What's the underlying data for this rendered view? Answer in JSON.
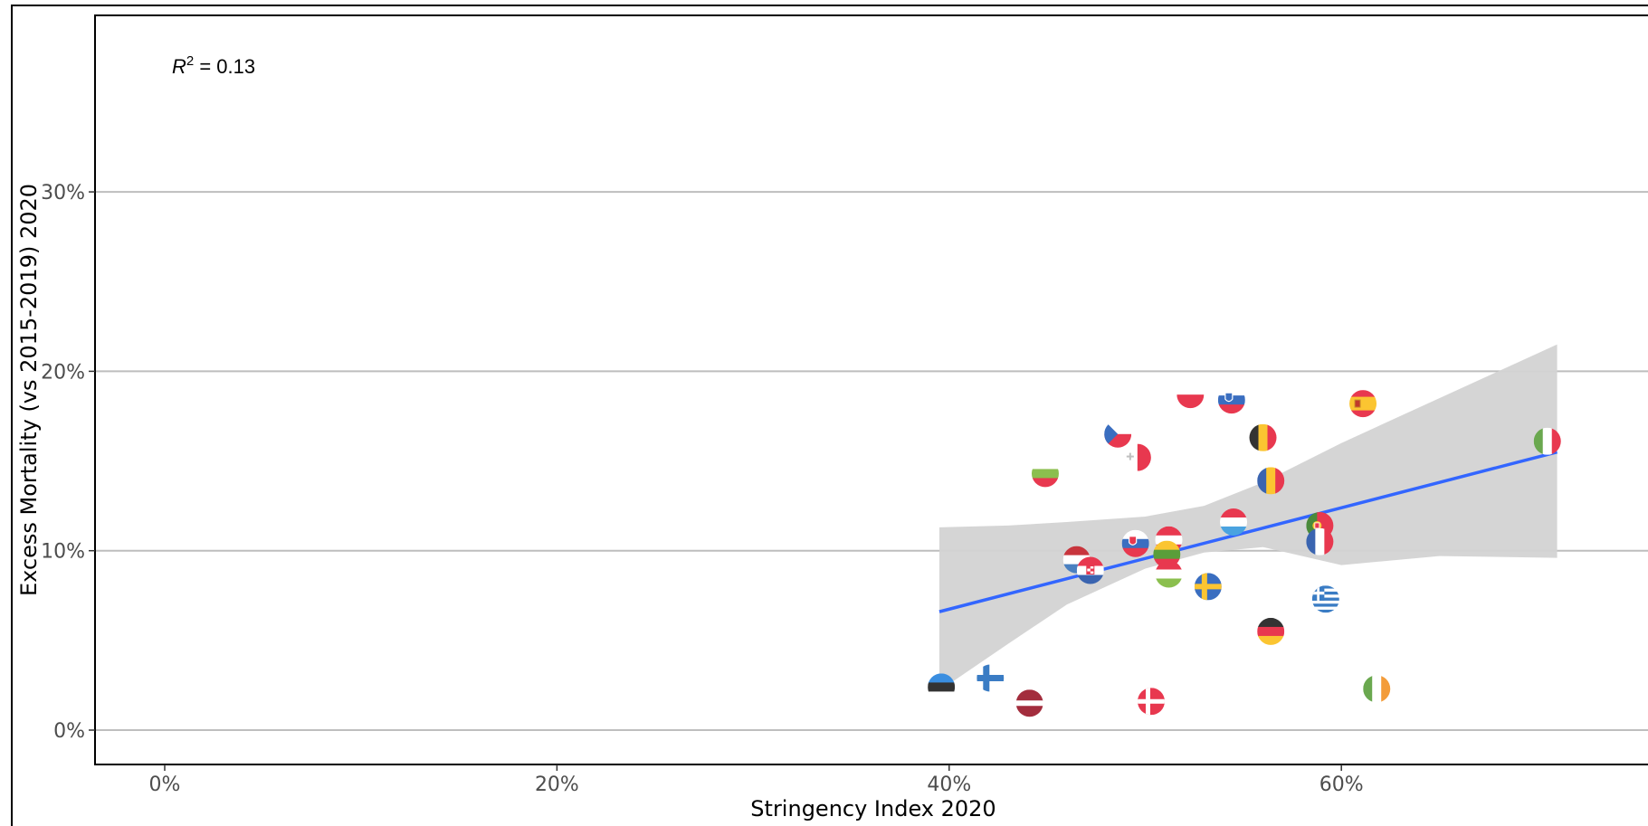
{
  "chart_data": {
    "type": "scatter",
    "xlabel": "Stringency Index 2020",
    "ylabel": "Excess Mortality (vs 2015-2019) 2020",
    "x_ticks": [
      "0%",
      "20%",
      "40%",
      "60%"
    ],
    "y_ticks": [
      "0%",
      "10%",
      "20%",
      "30%"
    ],
    "annotation": "R² = 0.13",
    "annotation_parts": {
      "r": "R",
      "sup": "2",
      "rest": " = 0.13"
    },
    "grid": "horizontal",
    "trend_color": "#3366ff",
    "ribbon_color": "#d3d3d3",
    "trend": {
      "x": [
        0.395,
        0.71
      ],
      "y": [
        0.066,
        0.155
      ]
    },
    "ribbon": [
      {
        "x": 0.395,
        "lo": 0.022,
        "hi": 0.113
      },
      {
        "x": 0.43,
        "lo": 0.048,
        "hi": 0.114
      },
      {
        "x": 0.46,
        "lo": 0.07,
        "hi": 0.116
      },
      {
        "x": 0.5,
        "lo": 0.09,
        "hi": 0.119
      },
      {
        "x": 0.53,
        "lo": 0.099,
        "hi": 0.125
      },
      {
        "x": 0.56,
        "lo": 0.102,
        "hi": 0.138
      },
      {
        "x": 0.6,
        "lo": 0.092,
        "hi": 0.16
      },
      {
        "x": 0.65,
        "lo": 0.097,
        "hi": 0.185
      },
      {
        "x": 0.71,
        "lo": 0.096,
        "hi": 0.215
      }
    ],
    "points": [
      {
        "flag": "estonia",
        "x": 0.396,
        "y": 0.024
      },
      {
        "flag": "finland",
        "x": 0.421,
        "y": 0.029
      },
      {
        "flag": "latvia",
        "x": 0.441,
        "y": 0.015
      },
      {
        "flag": "bulgaria",
        "x": 0.449,
        "y": 0.143
      },
      {
        "flag": "netherlands",
        "x": 0.465,
        "y": 0.095
      },
      {
        "flag": "croatia",
        "x": 0.472,
        "y": 0.089
      },
      {
        "flag": "czechia",
        "x": 0.486,
        "y": 0.165
      },
      {
        "flag": "malta",
        "x": 0.496,
        "y": 0.152
      },
      {
        "flag": "slovakia",
        "x": 0.495,
        "y": 0.104
      },
      {
        "flag": "denmark",
        "x": 0.503,
        "y": 0.016
      },
      {
        "flag": "austria",
        "x": 0.512,
        "y": 0.106
      },
      {
        "flag": "lithuania",
        "x": 0.511,
        "y": 0.098
      },
      {
        "flag": "hungary",
        "x": 0.512,
        "y": 0.087
      },
      {
        "flag": "poland",
        "x": 0.523,
        "y": 0.187
      },
      {
        "flag": "sweden",
        "x": 0.532,
        "y": 0.08
      },
      {
        "flag": "slovenia",
        "x": 0.544,
        "y": 0.184
      },
      {
        "flag": "luxembourg",
        "x": 0.545,
        "y": 0.116
      },
      {
        "flag": "belgium",
        "x": 0.56,
        "y": 0.163
      },
      {
        "flag": "romania",
        "x": 0.564,
        "y": 0.139
      },
      {
        "flag": "germany",
        "x": 0.564,
        "y": 0.055
      },
      {
        "flag": "portugal",
        "x": 0.589,
        "y": 0.114
      },
      {
        "flag": "france",
        "x": 0.589,
        "y": 0.105
      },
      {
        "flag": "greece",
        "x": 0.592,
        "y": 0.073
      },
      {
        "flag": "spain",
        "x": 0.611,
        "y": 0.182
      },
      {
        "flag": "ireland",
        "x": 0.618,
        "y": 0.023
      },
      {
        "flag": "italy",
        "x": 0.705,
        "y": 0.161
      }
    ]
  }
}
